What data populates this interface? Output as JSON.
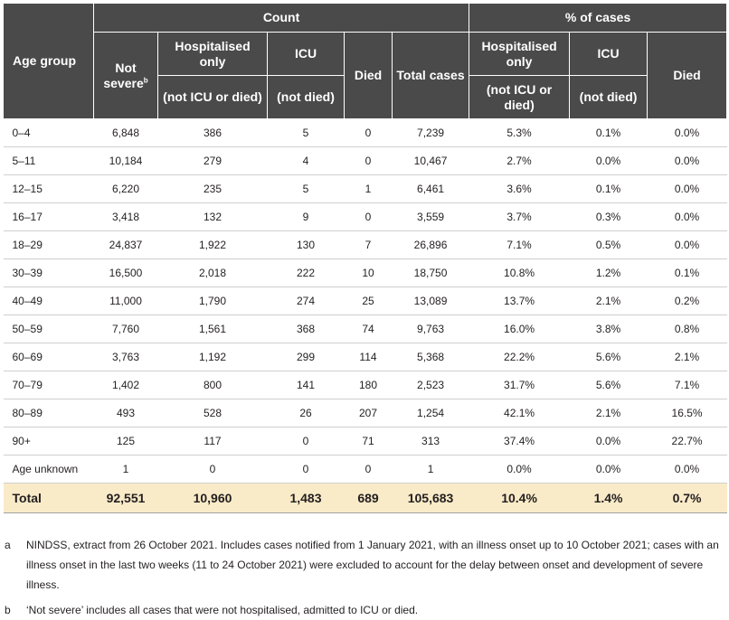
{
  "header": {
    "age_group": "Age group",
    "count": "Count",
    "pct_of_cases": "% of cases",
    "not_severe": "Not severe",
    "not_severe_sup": "b",
    "hospitalised_only": "Hospitalised only",
    "not_icu_or_died": "(not ICU or died)",
    "icu": "ICU",
    "not_died": "(not died)",
    "died": "Died",
    "total_cases": "Total cases"
  },
  "rows": [
    {
      "age": "0–4",
      "not_severe": "6,848",
      "hosp": "386",
      "icu": "5",
      "died": "0",
      "total": "7,239",
      "pct_hosp": "5.3%",
      "pct_icu": "0.1%",
      "pct_died": "0.0%"
    },
    {
      "age": "5–11",
      "not_severe": "10,184",
      "hosp": "279",
      "icu": "4",
      "died": "0",
      "total": "10,467",
      "pct_hosp": "2.7%",
      "pct_icu": "0.0%",
      "pct_died": "0.0%"
    },
    {
      "age": "12–15",
      "not_severe": "6,220",
      "hosp": "235",
      "icu": "5",
      "died": "1",
      "total": "6,461",
      "pct_hosp": "3.6%",
      "pct_icu": "0.1%",
      "pct_died": "0.0%"
    },
    {
      "age": "16–17",
      "not_severe": "3,418",
      "hosp": "132",
      "icu": "9",
      "died": "0",
      "total": "3,559",
      "pct_hosp": "3.7%",
      "pct_icu": "0.3%",
      "pct_died": "0.0%"
    },
    {
      "age": "18–29",
      "not_severe": "24,837",
      "hosp": "1,922",
      "icu": "130",
      "died": "7",
      "total": "26,896",
      "pct_hosp": "7.1%",
      "pct_icu": "0.5%",
      "pct_died": "0.0%"
    },
    {
      "age": "30–39",
      "not_severe": "16,500",
      "hosp": "2,018",
      "icu": "222",
      "died": "10",
      "total": "18,750",
      "pct_hosp": "10.8%",
      "pct_icu": "1.2%",
      "pct_died": "0.1%"
    },
    {
      "age": "40–49",
      "not_severe": "11,000",
      "hosp": "1,790",
      "icu": "274",
      "died": "25",
      "total": "13,089",
      "pct_hosp": "13.7%",
      "pct_icu": "2.1%",
      "pct_died": "0.2%"
    },
    {
      "age": "50–59",
      "not_severe": "7,760",
      "hosp": "1,561",
      "icu": "368",
      "died": "74",
      "total": "9,763",
      "pct_hosp": "16.0%",
      "pct_icu": "3.8%",
      "pct_died": "0.8%"
    },
    {
      "age": "60–69",
      "not_severe": "3,763",
      "hosp": "1,192",
      "icu": "299",
      "died": "114",
      "total": "5,368",
      "pct_hosp": "22.2%",
      "pct_icu": "5.6%",
      "pct_died": "2.1%"
    },
    {
      "age": "70–79",
      "not_severe": "1,402",
      "hosp": "800",
      "icu": "141",
      "died": "180",
      "total": "2,523",
      "pct_hosp": "31.7%",
      "pct_icu": "5.6%",
      "pct_died": "7.1%"
    },
    {
      "age": "80–89",
      "not_severe": "493",
      "hosp": "528",
      "icu": "26",
      "died": "207",
      "total": "1,254",
      "pct_hosp": "42.1%",
      "pct_icu": "2.1%",
      "pct_died": "16.5%"
    },
    {
      "age": "90+",
      "not_severe": "125",
      "hosp": "117",
      "icu": "0",
      "died": "71",
      "total": "313",
      "pct_hosp": "37.4%",
      "pct_icu": "0.0%",
      "pct_died": "22.7%"
    },
    {
      "age": "Age unknown",
      "not_severe": "1",
      "hosp": "0",
      "icu": "0",
      "died": "0",
      "total": "1",
      "pct_hosp": "0.0%",
      "pct_icu": "0.0%",
      "pct_died": "0.0%"
    }
  ],
  "total": {
    "age": "Total",
    "not_severe": "92,551",
    "hosp": "10,960",
    "icu": "1,483",
    "died": "689",
    "total": "105,683",
    "pct_hosp": "10.4%",
    "pct_icu": "1.4%",
    "pct_died": "0.7%"
  },
  "footnotes": [
    {
      "mark": "a",
      "text": "NINDSS, extract from 26 October 2021. Includes cases notified from 1 January 2021, with an illness onset up to 10 October 2021; cases with an illness onset in the last two weeks (11 to 24 October 2021) were excluded to account for the delay between onset and development of severe illness."
    },
    {
      "mark": "b",
      "text": "‘Not severe’ includes all cases that were not hospitalised, admitted to ICU or died."
    }
  ],
  "colors": {
    "header_bg": "#4a4a4a",
    "total_bg": "#faebc8"
  }
}
